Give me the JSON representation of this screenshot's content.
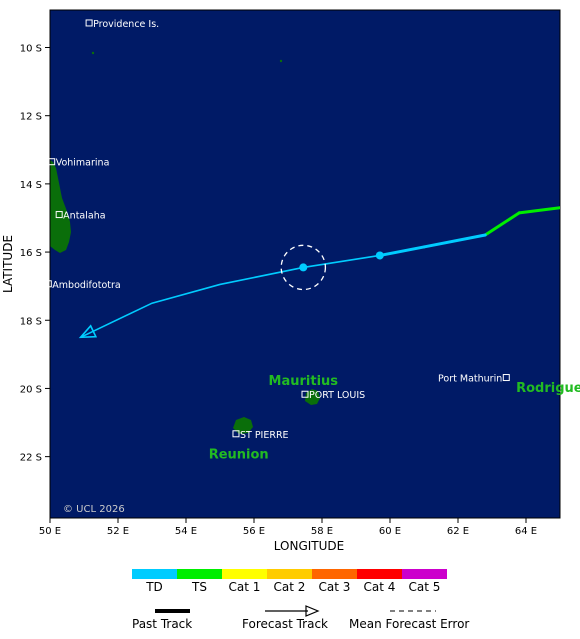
{
  "map": {
    "ocean_color": "#001a66",
    "land_color": "#0a6e0a",
    "copyright": "© UCL 2026",
    "xlabel": "LONGITUDE",
    "ylabel": "LATITUDE",
    "lon_range": [
      50,
      65
    ],
    "lat_range": [
      8.9,
      23.8
    ],
    "lon_ticks": [
      {
        "value": 50,
        "label": "50 E"
      },
      {
        "value": 52,
        "label": "52 E"
      },
      {
        "value": 54,
        "label": "54 E"
      },
      {
        "value": 56,
        "label": "56 E"
      },
      {
        "value": 58,
        "label": "58 E"
      },
      {
        "value": 60,
        "label": "60 E"
      },
      {
        "value": 62,
        "label": "62 E"
      },
      {
        "value": 64,
        "label": "64 E"
      }
    ],
    "lat_ticks": [
      {
        "value": 10,
        "label": "10 S"
      },
      {
        "value": 12,
        "label": "12 S"
      },
      {
        "value": 14,
        "label": "14 S"
      },
      {
        "value": 16,
        "label": "16 S"
      },
      {
        "value": 18,
        "label": "18 S"
      },
      {
        "value": 20,
        "label": "20 S"
      },
      {
        "value": 22,
        "label": "22 S"
      }
    ],
    "places": [
      {
        "name": "Providence Is.",
        "lon": 51.15,
        "lat": 9.28
      },
      {
        "name": "Vohimarina",
        "lon": 50.05,
        "lat": 13.35
      },
      {
        "name": "Antalaha",
        "lon": 50.27,
        "lat": 14.9
      },
      {
        "name": "Ambodifototra",
        "lon": 49.95,
        "lat": 16.93
      },
      {
        "name": "PORT LOUIS",
        "lon": 57.5,
        "lat": 20.17
      },
      {
        "name": "ST PIERRE",
        "lon": 55.47,
        "lat": 21.33
      },
      {
        "name": "Port Mathurin",
        "lon": 63.42,
        "lat": 19.68
      }
    ],
    "regions": [
      {
        "name": "Mauritius",
        "lon": 57.45,
        "lat": 19.9
      },
      {
        "name": "Reunion",
        "lon": 55.55,
        "lat": 22.05
      },
      {
        "name": "Rodrigues",
        "lon": 64.8,
        "lat": 20.1
      }
    ]
  },
  "chart_data": {
    "type": "line",
    "past_track": [
      {
        "lon": 65.0,
        "lat": 14.7,
        "cat": "TS"
      },
      {
        "lon": 63.8,
        "lat": 14.85,
        "cat": "TS"
      },
      {
        "lon": 62.8,
        "lat": 15.5,
        "cat": "TS"
      },
      {
        "lon": 61.0,
        "lat": 15.85,
        "cat": "TD"
      },
      {
        "lon": 59.7,
        "lat": 16.1,
        "cat": "TD"
      }
    ],
    "forecast_track": [
      {
        "lon": 59.7,
        "lat": 16.1
      },
      {
        "lon": 57.45,
        "lat": 16.45
      },
      {
        "lon": 55.0,
        "lat": 16.95
      },
      {
        "lon": 53.0,
        "lat": 17.5
      },
      {
        "lon": 50.9,
        "lat": 18.5
      }
    ],
    "forecast_points": [
      {
        "lon": 59.7,
        "lat": 16.1
      },
      {
        "lon": 57.45,
        "lat": 16.45
      }
    ],
    "error_circle": {
      "lon": 57.45,
      "lat": 16.45,
      "radius_deg": 0.65
    }
  },
  "legend": {
    "categories": [
      {
        "label": "TD",
        "color": "#00ccff"
      },
      {
        "label": "TS",
        "color": "#00ee00"
      },
      {
        "label": "Cat 1",
        "color": "#ffff00"
      },
      {
        "label": "Cat 2",
        "color": "#ffcc00"
      },
      {
        "label": "Cat 3",
        "color": "#ff6600"
      },
      {
        "label": "Cat 4",
        "color": "#ff0000"
      },
      {
        "label": "Cat 5",
        "color": "#cc00cc"
      }
    ],
    "past_track_label": "Past Track",
    "forecast_track_label": "Forecast Track",
    "error_label": "Mean Forecast Error"
  }
}
